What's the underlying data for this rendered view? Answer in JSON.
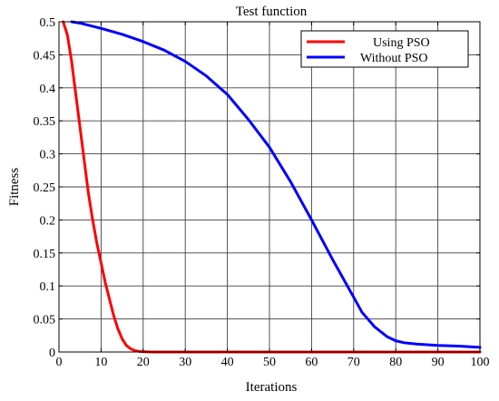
{
  "chart_data": {
    "type": "line",
    "title": "Test function",
    "xlabel": "Iterations",
    "ylabel": "Fitness",
    "xlim": [
      0,
      100
    ],
    "ylim": [
      0,
      0.5
    ],
    "xticks": [
      0,
      10,
      20,
      30,
      40,
      50,
      60,
      70,
      80,
      90,
      100
    ],
    "yticks": [
      0,
      0.05,
      0.1,
      0.15,
      0.2,
      0.25,
      0.3,
      0.35,
      0.4,
      0.45,
      0.5
    ],
    "xtick_labels": [
      "0",
      "10",
      "20",
      "30",
      "40",
      "50",
      "60",
      "70",
      "80",
      "90",
      "100"
    ],
    "ytick_labels": [
      "0",
      "0.05",
      "0.1",
      "0.15",
      "0.2",
      "0.25",
      "0.3",
      "0.35",
      "0.4",
      "0.45",
      "0.5"
    ],
    "grid": true,
    "legend_position": "top-right",
    "series": [
      {
        "name": "Using PSO",
        "color": "#ff0000",
        "x": [
          1,
          2,
          3,
          4,
          5,
          6,
          7,
          8,
          9,
          10,
          11,
          12,
          13,
          14,
          15,
          16,
          17,
          18,
          19,
          20,
          22,
          25,
          30,
          40,
          50,
          60,
          70,
          80,
          90,
          100
        ],
        "y": [
          0.5,
          0.48,
          0.44,
          0.39,
          0.34,
          0.29,
          0.24,
          0.2,
          0.165,
          0.135,
          0.105,
          0.08,
          0.055,
          0.035,
          0.02,
          0.01,
          0.005,
          0.002,
          0.001,
          0.0005,
          0,
          0,
          0,
          0,
          0,
          0,
          0,
          0,
          0,
          0
        ]
      },
      {
        "name": "Without PSO",
        "color": "#0000ff",
        "x": [
          3,
          5,
          10,
          15,
          20,
          25,
          30,
          35,
          40,
          45,
          50,
          55,
          60,
          65,
          70,
          72,
          75,
          78,
          80,
          82,
          85,
          90,
          95,
          100
        ],
        "y": [
          0.5,
          0.498,
          0.49,
          0.481,
          0.47,
          0.457,
          0.44,
          0.418,
          0.39,
          0.352,
          0.31,
          0.258,
          0.2,
          0.14,
          0.083,
          0.06,
          0.038,
          0.023,
          0.017,
          0.014,
          0.012,
          0.01,
          0.009,
          0.007
        ]
      }
    ]
  }
}
